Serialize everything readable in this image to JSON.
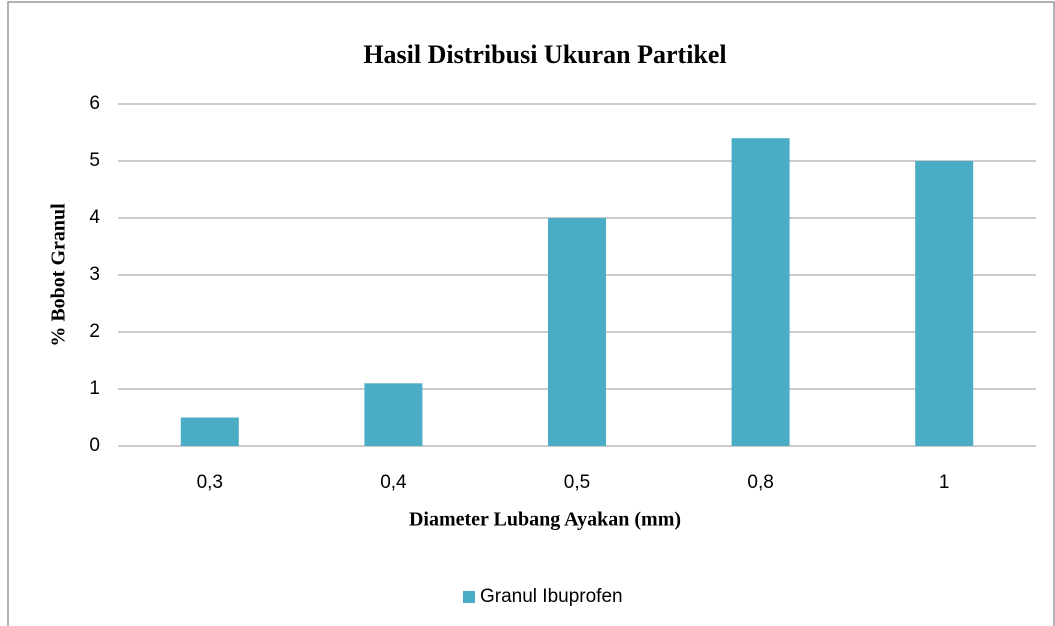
{
  "chart_data": {
    "type": "bar",
    "title": "Hasil Distribusi Ukuran Partikel",
    "x_label": "Diameter Lubang Ayakan (mm)",
    "y_label": "% Bobot Granul",
    "categories": [
      "0,3",
      "0,4",
      "0,5",
      "0,8",
      "1"
    ],
    "series": [
      {
        "name": "Granul Ibuprofen",
        "color": "#4bacc6",
        "values": [
          0.5,
          1.1,
          4.0,
          5.4,
          5.0
        ]
      }
    ],
    "ylim": [
      0,
      6
    ],
    "yticks": [
      0,
      1,
      2,
      3,
      4,
      5,
      6
    ],
    "grid": true,
    "legend": "bottom"
  }
}
